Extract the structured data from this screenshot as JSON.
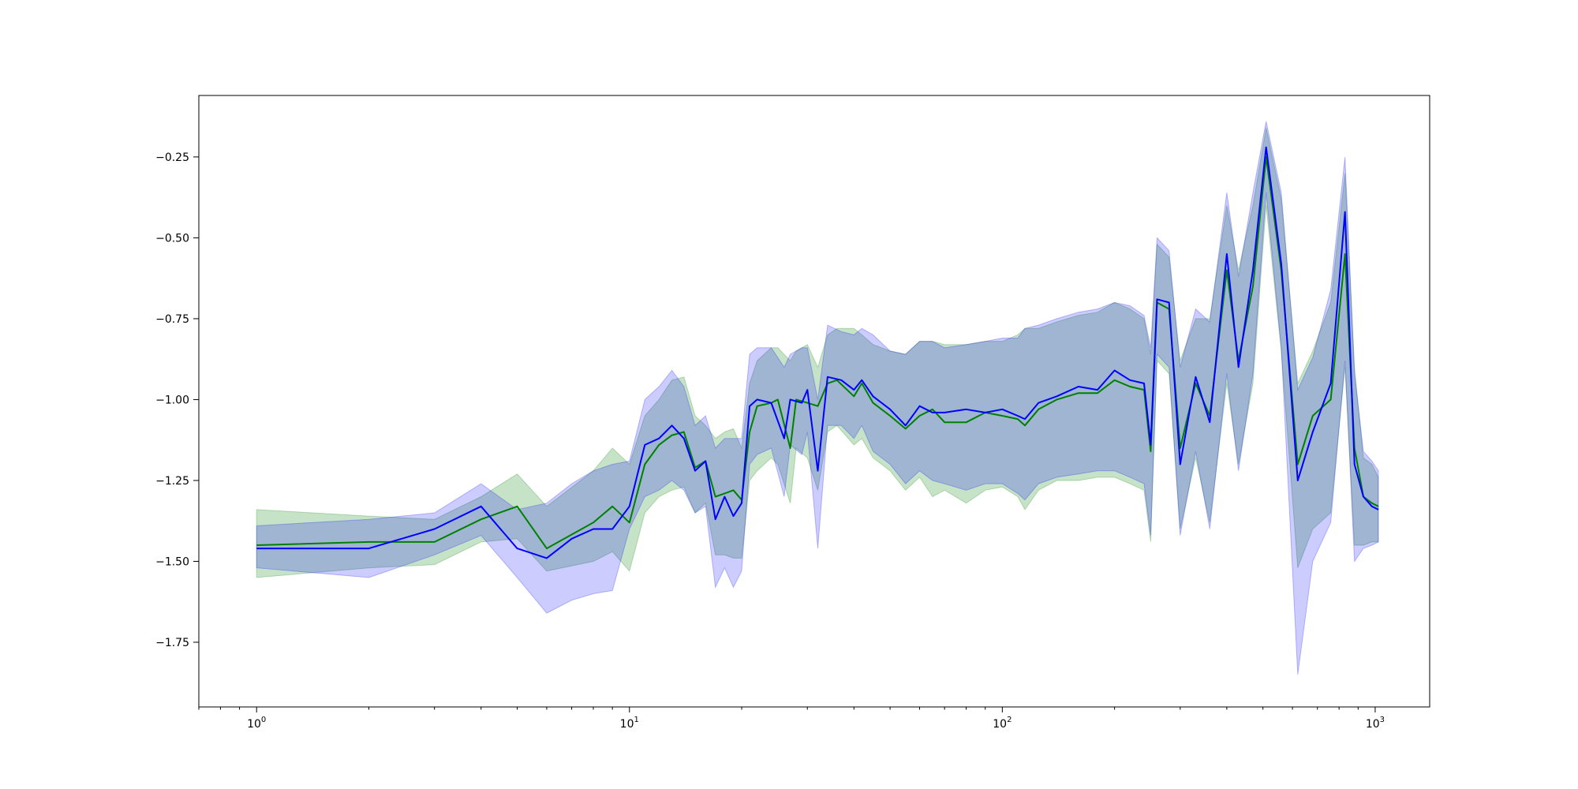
{
  "chart_data": {
    "type": "line",
    "x_scale": "log",
    "xlim": [
      0.7,
      1400
    ],
    "ylim": [
      -1.95,
      -0.06
    ],
    "grid": false,
    "legend": "none",
    "x_ticks": [
      {
        "value": 1,
        "base": "10",
        "exp": "0"
      },
      {
        "value": 10,
        "base": "10",
        "exp": "1"
      },
      {
        "value": 100,
        "base": "10",
        "exp": "2"
      },
      {
        "value": 1000,
        "base": "10",
        "exp": "3"
      }
    ],
    "y_ticks": [
      {
        "value": -0.25,
        "label": "−0.25"
      },
      {
        "value": -0.5,
        "label": "−0.50"
      },
      {
        "value": -0.75,
        "label": "−0.75"
      },
      {
        "value": -1.0,
        "label": "−1.00"
      },
      {
        "value": -1.25,
        "label": "−1.25"
      },
      {
        "value": -1.5,
        "label": "−1.50"
      },
      {
        "value": -1.75,
        "label": "−1.75"
      }
    ],
    "series": [
      {
        "color": "#008000",
        "band_color": "#008000",
        "band_opacity": 0.22,
        "points": [
          [
            1,
            -1.45,
            -1.55,
            -1.34
          ],
          [
            2,
            -1.44,
            -1.52,
            -1.36
          ],
          [
            3,
            -1.44,
            -1.51,
            -1.37
          ],
          [
            4,
            -1.37,
            -1.44,
            -1.3
          ],
          [
            5,
            -1.33,
            -1.43,
            -1.23
          ],
          [
            6,
            -1.46,
            -1.53,
            -1.33
          ],
          [
            8,
            -1.38,
            -1.5,
            -1.22
          ],
          [
            9,
            -1.33,
            -1.47,
            -1.15
          ],
          [
            10,
            -1.38,
            -1.53,
            -1.2
          ],
          [
            11,
            -1.2,
            -1.35,
            -1.05
          ],
          [
            12,
            -1.14,
            -1.3,
            -1.0
          ],
          [
            13,
            -1.11,
            -1.28,
            -0.94
          ],
          [
            14,
            -1.1,
            -1.27,
            -0.93
          ],
          [
            15,
            -1.21,
            -1.35,
            -1.05
          ],
          [
            16,
            -1.19,
            -1.32,
            -1.08
          ],
          [
            17,
            -1.3,
            -1.48,
            -1.12
          ],
          [
            18,
            -1.29,
            -1.48,
            -1.1
          ],
          [
            19,
            -1.28,
            -1.49,
            -1.09
          ],
          [
            20,
            -1.31,
            -1.49,
            -1.15
          ],
          [
            21,
            -1.1,
            -1.25,
            -0.95
          ],
          [
            22,
            -1.02,
            -1.22,
            -0.88
          ],
          [
            24,
            -1.01,
            -1.18,
            -0.84
          ],
          [
            25,
            -1.0,
            -1.2,
            -0.84
          ],
          [
            27,
            -1.15,
            -1.32,
            -0.88
          ],
          [
            28,
            -1.0,
            -1.15,
            -0.85
          ],
          [
            30,
            -1.01,
            -1.18,
            -0.83
          ],
          [
            32,
            -1.02,
            -1.28,
            -0.9
          ],
          [
            34,
            -0.95,
            -1.1,
            -0.8
          ],
          [
            36,
            -0.94,
            -1.08,
            -0.78
          ],
          [
            40,
            -0.99,
            -1.14,
            -0.78
          ],
          [
            42,
            -0.95,
            -1.12,
            -0.8
          ],
          [
            45,
            -1.01,
            -1.18,
            -0.83
          ],
          [
            50,
            -1.05,
            -1.22,
            -0.85
          ],
          [
            55,
            -1.09,
            -1.28,
            -0.86
          ],
          [
            60,
            -1.05,
            -1.24,
            -0.82
          ],
          [
            65,
            -1.03,
            -1.3,
            -0.82
          ],
          [
            70,
            -1.07,
            -1.28,
            -0.83
          ],
          [
            80,
            -1.07,
            -1.32,
            -0.83
          ],
          [
            90,
            -1.04,
            -1.28,
            -0.82
          ],
          [
            100,
            -1.05,
            -1.27,
            -0.82
          ],
          [
            110,
            -1.06,
            -1.3,
            -0.8
          ],
          [
            115,
            -1.08,
            -1.34,
            -0.78
          ],
          [
            125,
            -1.03,
            -1.28,
            -0.78
          ],
          [
            140,
            -1.0,
            -1.25,
            -0.76
          ],
          [
            160,
            -0.98,
            -1.25,
            -0.74
          ],
          [
            180,
            -0.98,
            -1.24,
            -0.73
          ],
          [
            200,
            -0.94,
            -1.24,
            -0.7
          ],
          [
            220,
            -0.96,
            -1.26,
            -0.72
          ],
          [
            240,
            -0.97,
            -1.28,
            -0.75
          ],
          [
            250,
            -1.16,
            -1.44,
            -0.86
          ],
          [
            260,
            -0.7,
            -0.88,
            -0.52
          ],
          [
            280,
            -0.72,
            -0.92,
            -0.56
          ],
          [
            300,
            -1.15,
            -1.4,
            -0.88
          ],
          [
            330,
            -0.95,
            -1.18,
            -0.75
          ],
          [
            360,
            -1.05,
            -1.38,
            -0.75
          ],
          [
            400,
            -0.6,
            -0.95,
            -0.4
          ],
          [
            430,
            -0.88,
            -1.2,
            -0.6
          ],
          [
            470,
            -0.65,
            -0.95,
            -0.4
          ],
          [
            510,
            -0.25,
            -0.4,
            -0.16
          ],
          [
            560,
            -0.6,
            -0.85,
            -0.38
          ],
          [
            620,
            -1.2,
            -1.52,
            -0.95
          ],
          [
            680,
            -1.05,
            -1.4,
            -0.85
          ],
          [
            760,
            -1.0,
            -1.35,
            -0.7
          ],
          [
            830,
            -0.55,
            -0.9,
            -0.3
          ],
          [
            880,
            -1.15,
            -1.45,
            -0.9
          ],
          [
            930,
            -1.3,
            -1.45,
            -1.18
          ],
          [
            980,
            -1.32,
            -1.44,
            -1.2
          ],
          [
            1020,
            -1.33,
            -1.44,
            -1.24
          ]
        ]
      },
      {
        "color": "#0000ff",
        "band_color": "#0000ff",
        "band_opacity": 0.2,
        "points": [
          [
            1,
            -1.46,
            -1.52,
            -1.39
          ],
          [
            2,
            -1.46,
            -1.55,
            -1.37
          ],
          [
            3,
            -1.4,
            -1.48,
            -1.35
          ],
          [
            4,
            -1.33,
            -1.42,
            -1.26
          ],
          [
            5,
            -1.46,
            -1.55,
            -1.34
          ],
          [
            6,
            -1.49,
            -1.66,
            -1.32
          ],
          [
            7,
            -1.43,
            -1.62,
            -1.26
          ],
          [
            8,
            -1.4,
            -1.6,
            -1.22
          ],
          [
            9,
            -1.4,
            -1.59,
            -1.2
          ],
          [
            10,
            -1.33,
            -1.4,
            -1.19
          ],
          [
            11,
            -1.14,
            -1.3,
            -1.0
          ],
          [
            12,
            -1.12,
            -1.28,
            -0.96
          ],
          [
            13,
            -1.08,
            -1.25,
            -0.91
          ],
          [
            14,
            -1.12,
            -1.28,
            -0.96
          ],
          [
            15,
            -1.22,
            -1.35,
            -1.08
          ],
          [
            16,
            -1.19,
            -1.33,
            -1.05
          ],
          [
            17,
            -1.37,
            -1.58,
            -1.15
          ],
          [
            18,
            -1.3,
            -1.52,
            -1.12
          ],
          [
            19,
            -1.36,
            -1.58,
            -1.12
          ],
          [
            20,
            -1.32,
            -1.53,
            -1.12
          ],
          [
            21,
            -1.02,
            -1.2,
            -0.86
          ],
          [
            22,
            -1.0,
            -1.17,
            -0.84
          ],
          [
            24,
            -1.01,
            -1.15,
            -0.84
          ],
          [
            26,
            -1.12,
            -1.3,
            -0.9
          ],
          [
            27,
            -1.0,
            -1.14,
            -0.86
          ],
          [
            29,
            -1.01,
            -1.17,
            -0.84
          ],
          [
            30,
            -0.97,
            -1.1,
            -0.84
          ],
          [
            32,
            -1.22,
            -1.46,
            -1.0
          ],
          [
            34,
            -0.93,
            -1.08,
            -0.77
          ],
          [
            37,
            -0.94,
            -1.08,
            -0.79
          ],
          [
            40,
            -0.97,
            -1.12,
            -0.8
          ],
          [
            42,
            -0.94,
            -1.08,
            -0.78
          ],
          [
            45,
            -0.99,
            -1.16,
            -0.8
          ],
          [
            50,
            -1.03,
            -1.2,
            -0.85
          ],
          [
            55,
            -1.08,
            -1.26,
            -0.86
          ],
          [
            60,
            -1.02,
            -1.22,
            -0.82
          ],
          [
            65,
            -1.04,
            -1.25,
            -0.82
          ],
          [
            70,
            -1.04,
            -1.26,
            -0.84
          ],
          [
            80,
            -1.03,
            -1.28,
            -0.83
          ],
          [
            90,
            -1.04,
            -1.26,
            -0.82
          ],
          [
            100,
            -1.03,
            -1.26,
            -0.81
          ],
          [
            110,
            -1.05,
            -1.29,
            -0.81
          ],
          [
            115,
            -1.06,
            -1.31,
            -0.78
          ],
          [
            125,
            -1.01,
            -1.26,
            -0.77
          ],
          [
            140,
            -0.99,
            -1.24,
            -0.75
          ],
          [
            160,
            -0.96,
            -1.23,
            -0.73
          ],
          [
            180,
            -0.97,
            -1.22,
            -0.72
          ],
          [
            200,
            -0.91,
            -1.22,
            -0.7
          ],
          [
            220,
            -0.94,
            -1.24,
            -0.71
          ],
          [
            240,
            -0.95,
            -1.26,
            -0.74
          ],
          [
            250,
            -1.14,
            -1.42,
            -0.84
          ],
          [
            260,
            -0.69,
            -0.86,
            -0.5
          ],
          [
            280,
            -0.7,
            -0.9,
            -0.54
          ],
          [
            300,
            -1.2,
            -1.42,
            -0.9
          ],
          [
            330,
            -0.93,
            -1.16,
            -0.72
          ],
          [
            360,
            -1.07,
            -1.4,
            -0.76
          ],
          [
            400,
            -0.55,
            -0.92,
            -0.36
          ],
          [
            430,
            -0.9,
            -1.22,
            -0.62
          ],
          [
            470,
            -0.6,
            -0.92,
            -0.36
          ],
          [
            510,
            -0.22,
            -0.36,
            -0.14
          ],
          [
            560,
            -0.58,
            -0.84,
            -0.36
          ],
          [
            620,
            -1.25,
            -1.85,
            -0.97
          ],
          [
            680,
            -1.1,
            -1.5,
            -0.87
          ],
          [
            760,
            -0.95,
            -1.38,
            -0.66
          ],
          [
            830,
            -0.42,
            -0.88,
            -0.25
          ],
          [
            880,
            -1.2,
            -1.5,
            -0.92
          ],
          [
            930,
            -1.3,
            -1.46,
            -1.16
          ],
          [
            980,
            -1.33,
            -1.45,
            -1.19
          ],
          [
            1020,
            -1.34,
            -1.44,
            -1.22
          ]
        ]
      }
    ]
  }
}
